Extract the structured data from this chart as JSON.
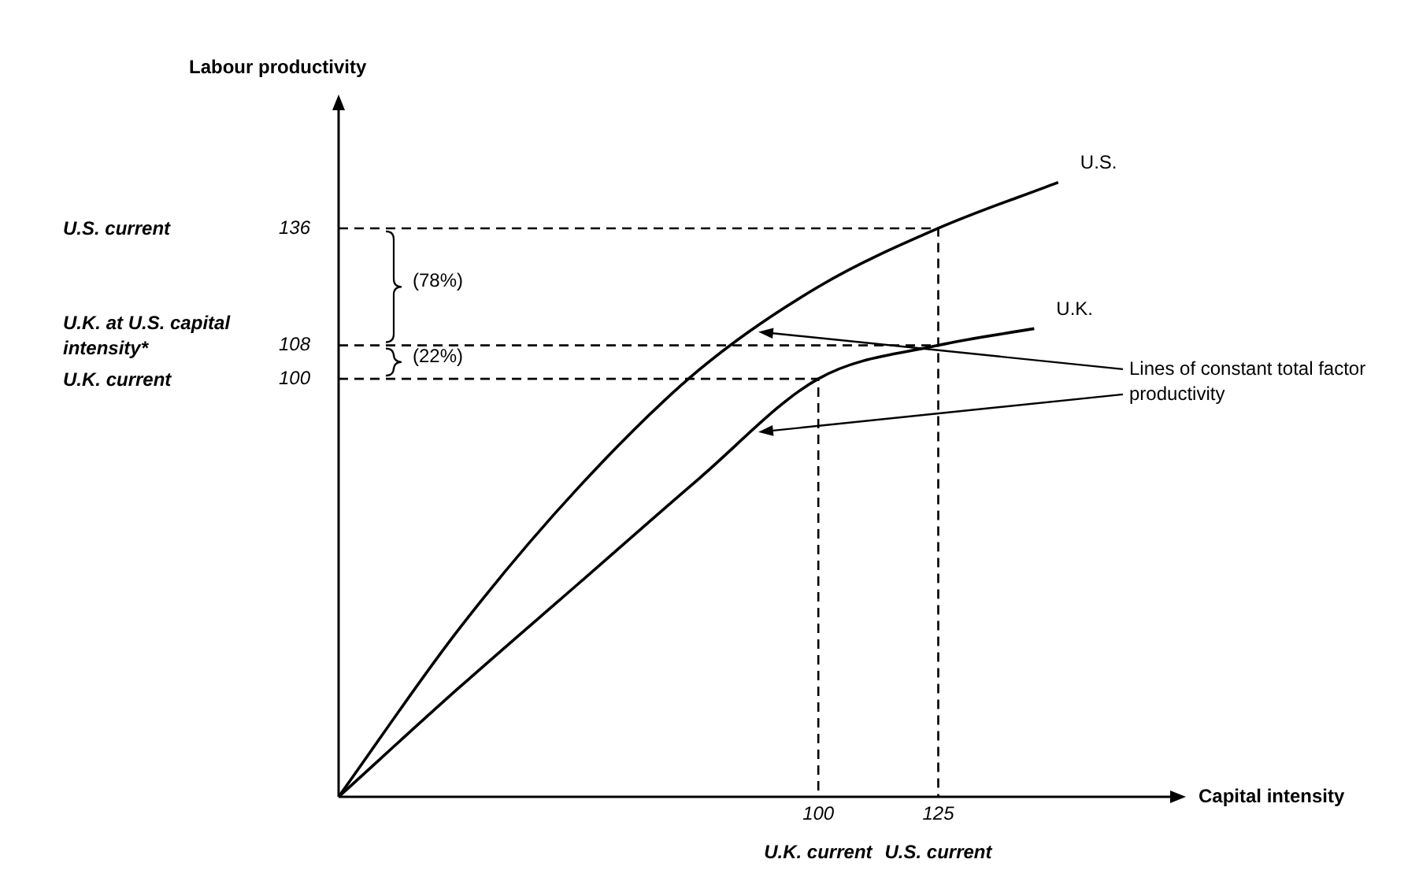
{
  "chart_data": {
    "type": "line",
    "xlabel": "Capital intensity",
    "ylabel": "Labour productivity",
    "xlim": [
      0,
      174
    ],
    "ylim": [
      0,
      165
    ],
    "xticks": [
      100,
      125
    ],
    "yticks": [
      100,
      108,
      136
    ],
    "grid": false,
    "legend": false,
    "marker": "none",
    "series": [
      {
        "name": "U.S.",
        "color": "#000000",
        "x": [
          0,
          25,
          50,
          75,
          100,
          125,
          150
        ],
        "values": [
          0,
          40,
          74,
          102,
          122,
          136,
          147
        ]
      },
      {
        "name": "U.K.",
        "color": "#000000",
        "x": [
          0,
          25,
          50,
          75,
          100,
          125,
          145
        ],
        "values": [
          0,
          26,
          51,
          76,
          100,
          108,
          112
        ]
      },
      {
        "color": "#000000",
        "line_style": "dashed",
        "x": [
          0,
          125,
          125
        ],
        "values": [
          136,
          136,
          0
        ]
      },
      {
        "color": "#000000",
        "line_style": "dashed",
        "x": [
          0,
          125
        ],
        "values": [
          108,
          108
        ]
      },
      {
        "color": "#000000",
        "line_style": "dashed",
        "x": [
          0,
          100,
          100
        ],
        "values": [
          100,
          100,
          0
        ]
      }
    ],
    "annotations": [
      "U.S. current",
      "U.K. at U.S. capital intensity*",
      "U.K. current",
      "U.K. current",
      "U.S. current",
      "(78%)",
      "(22%)",
      "Lines of constant total factor productivity"
    ]
  }
}
